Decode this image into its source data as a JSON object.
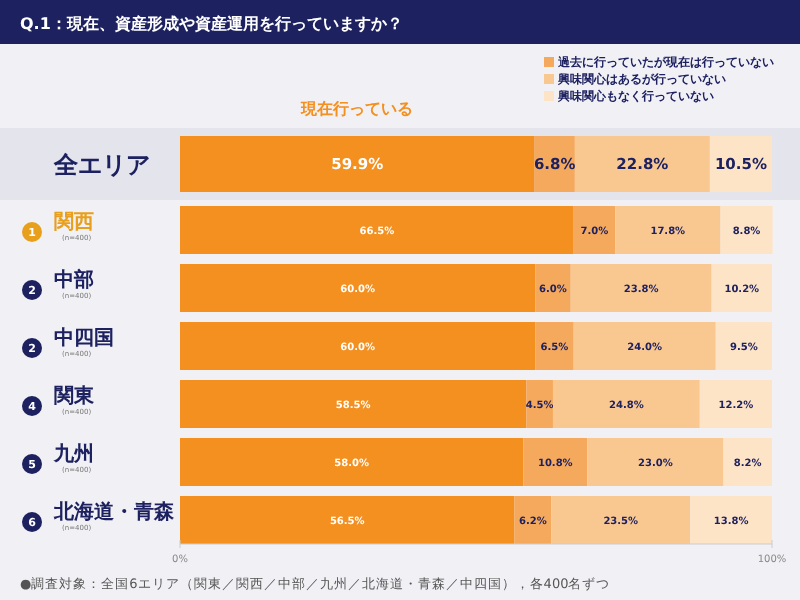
{
  "chart_data": {
    "type": "bar",
    "orientation": "horizontal",
    "stacked": true,
    "title": "Q.1：現在、資産形成や資産運用を行っていますか？",
    "categories": [
      "全エリア",
      "関西",
      "中部",
      "中四国",
      "関東",
      "九州",
      "北海道・青森"
    ],
    "series": [
      {
        "name": "現在行っている",
        "color": "#f39020",
        "values": [
          59.9,
          66.5,
          60.0,
          60.0,
          58.5,
          58.0,
          56.5
        ],
        "value_labels": [
          "59.9%",
          "66.5%",
          "60.0%",
          "60.0%",
          "58.5%",
          "58.0%",
          "56.5%"
        ]
      },
      {
        "name": "過去に行っていたが現在は行っていない",
        "color": "#f5a95c",
        "values": [
          6.8,
          7.0,
          6.0,
          6.5,
          4.5,
          10.8,
          6.2
        ],
        "value_labels": [
          "6.8%",
          "7.0%",
          "6.0%",
          "6.5%",
          "4.5%",
          "10.8%",
          "6.2%"
        ]
      },
      {
        "name": "興味関心はあるが行っていない",
        "color": "#f9c891",
        "values": [
          22.8,
          17.8,
          23.8,
          24.0,
          24.8,
          23.0,
          23.5
        ],
        "value_labels": [
          "22.8%",
          "17.8%",
          "23.8%",
          "24.0%",
          "24.8%",
          "23.0%",
          "23.5%"
        ]
      },
      {
        "name": "興味関心もなく行っていない",
        "color": "#fde4c6",
        "values": [
          10.5,
          8.8,
          10.2,
          9.5,
          12.2,
          8.2,
          13.8
        ],
        "value_labels": [
          "10.5%",
          "8.8%",
          "10.2%",
          "9.5%",
          "12.2%",
          "8.2%",
          "13.8%"
        ]
      }
    ],
    "xlim": [
      0,
      100
    ],
    "xticks": [
      {
        "value": 0,
        "label": "0%"
      },
      {
        "value": 100,
        "label": "100%"
      }
    ],
    "legend": "top right",
    "annotations": [
      "●調査対象：全国6エリア（関東／関西／中部／九州／北海道・青森／中四国），各400名ずつ",
      "1",
      "2",
      "2",
      "4",
      "5",
      "6",
      "(n=400)",
      "(n=400)",
      "(n=400)",
      "(n=400)",
      "(n=400)",
      "(n=400)"
    ]
  }
}
